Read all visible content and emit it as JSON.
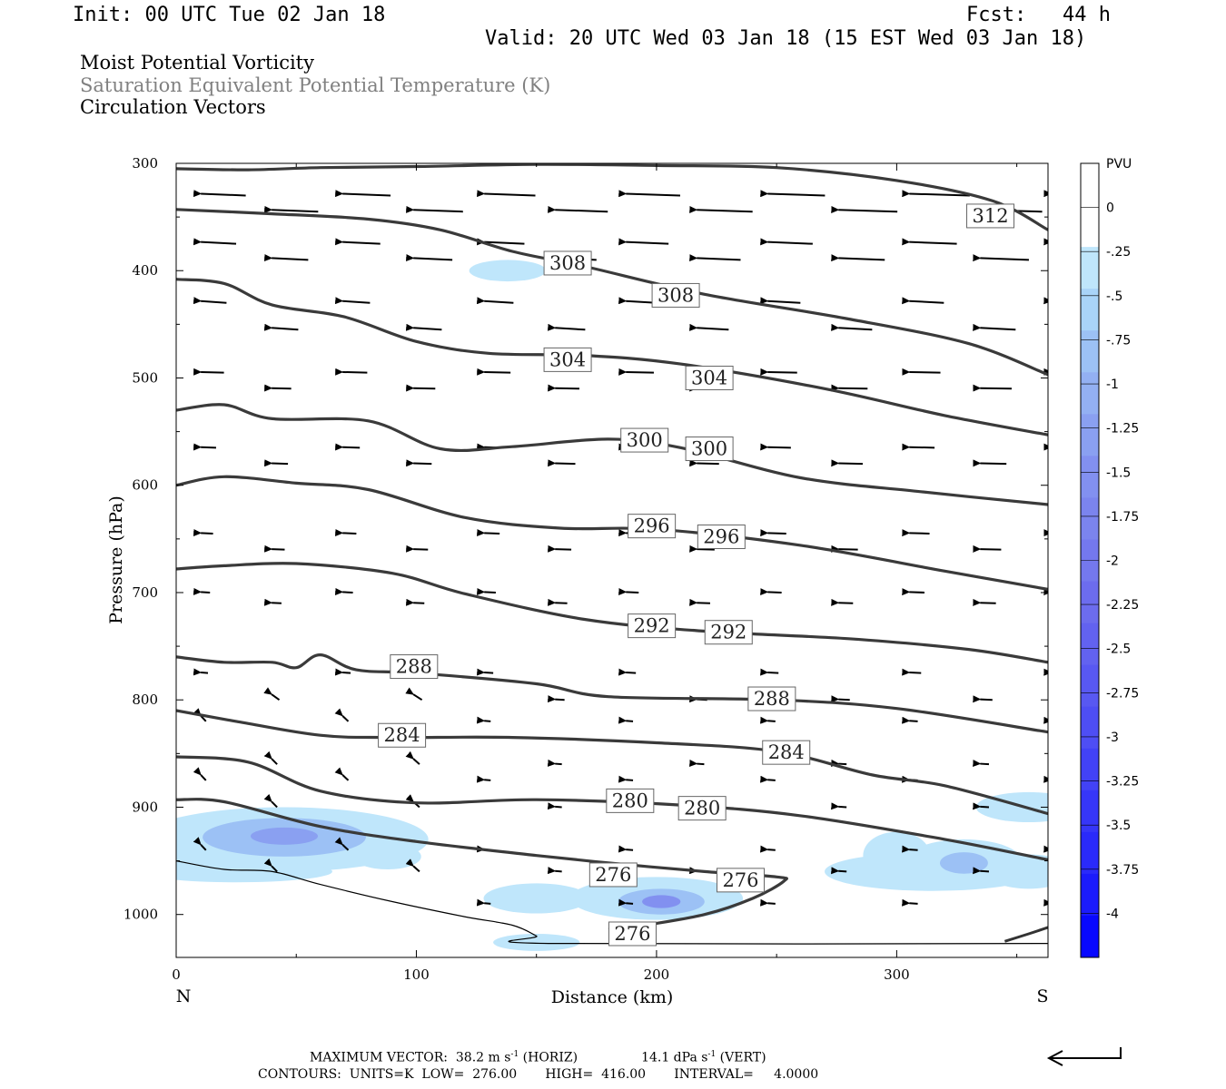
{
  "header": {
    "init": "Init: 00 UTC Tue 02 Jan 18",
    "fcst": "Fcst:   44 h",
    "valid": "Valid: 20 UTC Wed 03 Jan 18 (15 EST Wed 03 Jan 18)"
  },
  "legend": {
    "line1": "Moist Potential Vorticity",
    "line2": "Saturation Equivalent Potential Temperature (K)",
    "line3": "Circulation Vectors",
    "line2_color": "#808080"
  },
  "footer": {
    "line1_a": "MAXIMUM VECTOR:  38.2 m s",
    "line1_b": " (HORIZ)",
    "line1_c": "14.1 dPa s",
    "line1_d": " (VERT)",
    "superscript": "-1",
    "line2": "CONTOURS:  UNITS=K  LOW=  276.00       HIGH=  416.00       INTERVAL=     4.0000"
  },
  "chart_data": {
    "type": "contour",
    "xlabel": "Distance (km)",
    "ylabel": "Pressure (hPa)",
    "xlim": [
      0,
      363
    ],
    "ylim": [
      1040,
      300
    ],
    "x_ticks": [
      "0",
      "100",
      "200",
      "300"
    ],
    "y_ticks": [
      "300",
      "400",
      "500",
      "600",
      "700",
      "800",
      "900",
      "1000"
    ],
    "x_end_labels": {
      "left": "N",
      "right": "S"
    },
    "contours": [
      {
        "label": "312",
        "points": [
          [
            0,
            305
          ],
          [
            30,
            306
          ],
          [
            60,
            304
          ],
          [
            100,
            303
          ],
          [
            150,
            301
          ],
          [
            200,
            302
          ],
          [
            250,
            304
          ],
          [
            300,
            316
          ],
          [
            340,
            335
          ],
          [
            363,
            362
          ]
        ],
        "label_pos": [
          [
            339,
            349
          ]
        ]
      },
      {
        "label": "308",
        "points": [
          [
            0,
            343
          ],
          [
            40,
            347
          ],
          [
            80,
            352
          ],
          [
            110,
            362
          ],
          [
            140,
            382
          ],
          [
            170,
            396
          ],
          [
            220,
            422
          ],
          [
            280,
            445
          ],
          [
            330,
            468
          ],
          [
            363,
            497
          ]
        ],
        "label_pos": [
          [
            163,
            393
          ],
          [
            208,
            423
          ]
        ]
      },
      {
        "label": "304",
        "points": [
          [
            0,
            408
          ],
          [
            20,
            412
          ],
          [
            40,
            432
          ],
          [
            70,
            443
          ],
          [
            100,
            466
          ],
          [
            130,
            477
          ],
          [
            170,
            479
          ],
          [
            210,
            487
          ],
          [
            270,
            510
          ],
          [
            320,
            535
          ],
          [
            363,
            553
          ]
        ],
        "label_pos": [
          [
            163,
            483
          ],
          [
            222,
            500
          ]
        ]
      },
      {
        "label": "300",
        "points": [
          [
            0,
            530
          ],
          [
            20,
            525
          ],
          [
            40,
            538
          ],
          [
            80,
            540
          ],
          [
            110,
            566
          ],
          [
            140,
            564
          ],
          [
            180,
            557
          ],
          [
            210,
            565
          ],
          [
            260,
            593
          ],
          [
            310,
            606
          ],
          [
            363,
            618
          ]
        ],
        "label_pos": [
          [
            195,
            558
          ],
          [
            222,
            566
          ]
        ]
      },
      {
        "label": "296",
        "points": [
          [
            0,
            600
          ],
          [
            20,
            592
          ],
          [
            50,
            598
          ],
          [
            80,
            604
          ],
          [
            120,
            630
          ],
          [
            160,
            640
          ],
          [
            200,
            641
          ],
          [
            260,
            656
          ],
          [
            320,
            680
          ],
          [
            363,
            697
          ]
        ],
        "label_pos": [
          [
            198,
            638
          ],
          [
            227,
            648
          ]
        ]
      },
      {
        "label": "292",
        "points": [
          [
            0,
            678
          ],
          [
            20,
            675
          ],
          [
            50,
            673
          ],
          [
            90,
            682
          ],
          [
            120,
            701
          ],
          [
            170,
            725
          ],
          [
            220,
            736
          ],
          [
            280,
            743
          ],
          [
            330,
            753
          ],
          [
            363,
            765
          ]
        ],
        "label_pos": [
          [
            198,
            731
          ],
          [
            230,
            737
          ]
        ]
      },
      {
        "label": "288",
        "points": [
          [
            0,
            760
          ],
          [
            20,
            765
          ],
          [
            40,
            765
          ],
          [
            50,
            770
          ],
          [
            60,
            758
          ],
          [
            75,
            772
          ],
          [
            100,
            775
          ],
          [
            150,
            785
          ],
          [
            180,
            797
          ],
          [
            250,
            800
          ],
          [
            300,
            808
          ],
          [
            363,
            830
          ]
        ],
        "label_pos": [
          [
            99,
            769
          ],
          [
            248,
            799
          ]
        ]
      },
      {
        "label": "284",
        "points": [
          [
            0,
            810
          ],
          [
            25,
            820
          ],
          [
            60,
            833
          ],
          [
            90,
            835
          ],
          [
            140,
            835
          ],
          [
            200,
            840
          ],
          [
            250,
            848
          ],
          [
            290,
            870
          ],
          [
            320,
            880
          ],
          [
            363,
            906
          ]
        ],
        "label_pos": [
          [
            94,
            833
          ],
          [
            254,
            849
          ]
        ]
      },
      {
        "label": "280",
        "points": [
          [
            0,
            853
          ],
          [
            30,
            858
          ],
          [
            60,
            885
          ],
          [
            100,
            896
          ],
          [
            150,
            893
          ],
          [
            210,
            898
          ],
          [
            260,
            908
          ],
          [
            320,
            930
          ],
          [
            363,
            949
          ]
        ],
        "label_pos": [
          [
            189,
            894
          ],
          [
            219,
            901
          ]
        ]
      },
      {
        "label": "276",
        "points": [
          [
            0,
            893
          ],
          [
            20,
            895
          ],
          [
            60,
            918
          ],
          [
            100,
            932
          ],
          [
            150,
            945
          ],
          [
            185,
            953
          ],
          [
            220,
            960
          ],
          [
            250,
            965
          ],
          [
            253,
            969
          ],
          [
            240,
            985
          ],
          [
            220,
            1000
          ],
          [
            195,
            1010
          ],
          [
            180,
            1014
          ]
        ],
        "label_pos": [
          [
            182,
            963
          ],
          [
            235,
            968
          ],
          [
            190,
            1018
          ]
        ]
      }
    ],
    "mpv_shading": {
      "levels": [
        "PVU",
        "0",
        "-.25",
        "-.5",
        "-.75",
        "-1",
        "-1.25",
        "-1.5",
        "-1.75",
        "-2",
        "-2.25",
        "-2.5",
        "-2.75",
        "-3",
        "-3.25",
        "-3.5",
        "-3.75",
        "-4"
      ],
      "colors": [
        "#ffffff",
        "#ffffff",
        "#bfe6fb",
        "#a9d4f8",
        "#9cc1f5",
        "#93b0f3",
        "#8aa0f1",
        "#8290f0",
        "#7b84ee",
        "#7478ee",
        "#6c6cee",
        "#6262f0",
        "#5858f2",
        "#4e4ef4",
        "#4242f6",
        "#3636f8",
        "#2a2afa",
        "#1b1bfc",
        "#0808ff"
      ]
    },
    "vectors": {
      "max_horizontal": "38.2 m s-1",
      "max_vertical": "14.1 dPa s-1"
    },
    "grid": false
  }
}
